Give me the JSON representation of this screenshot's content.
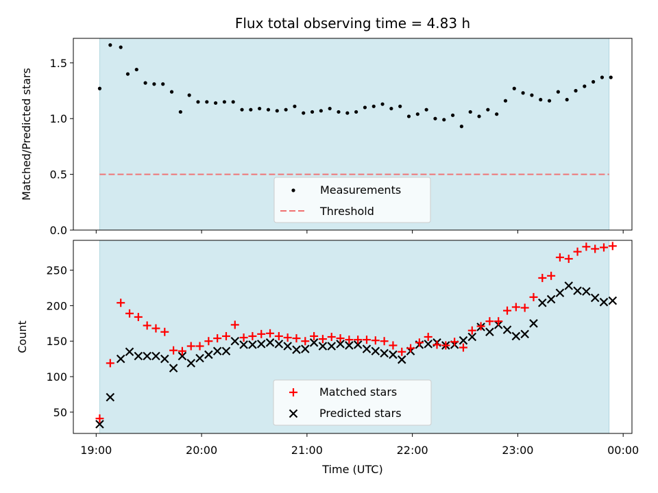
{
  "chart_data": [
    {
      "type": "scatter",
      "title": "Flux total observing time = 4.83 h",
      "xlabel": "",
      "ylabel": "Matched/Predicted stars",
      "ylim": [
        0,
        1.72
      ],
      "yticks": [
        0.0,
        0.5,
        1.0,
        1.5
      ],
      "ytick_labels": [
        "0.0",
        "0.5",
        "1.0",
        "1.5"
      ],
      "grid": false,
      "legend_position": "bottom-center",
      "shaded_interval": [
        "19:02",
        "23:52"
      ],
      "shade_color": "#d3eaf0",
      "series": [
        {
          "name": "Measurements",
          "marker": "dot",
          "color": "#000000",
          "x": [
            "19:02",
            "19:08",
            "19:14",
            "19:18",
            "19:23",
            "19:28",
            "19:33",
            "19:38",
            "19:43",
            "19:48",
            "19:53",
            "19:58",
            "20:03",
            "20:08",
            "20:13",
            "20:18",
            "20:23",
            "20:28",
            "20:33",
            "20:38",
            "20:43",
            "20:48",
            "20:53",
            "20:58",
            "21:03",
            "21:08",
            "21:13",
            "21:18",
            "21:23",
            "21:28",
            "21:33",
            "21:38",
            "21:43",
            "21:48",
            "21:53",
            "21:58",
            "22:03",
            "22:08",
            "22:13",
            "22:18",
            "22:23",
            "22:28",
            "22:33",
            "22:38",
            "22:43",
            "22:48",
            "22:53",
            "22:58",
            "23:03",
            "23:08",
            "23:13",
            "23:18",
            "23:23",
            "23:28",
            "23:33",
            "23:38",
            "23:43",
            "23:48",
            "23:53"
          ],
          "y": [
            1.27,
            1.66,
            1.64,
            1.4,
            1.44,
            1.32,
            1.31,
            1.31,
            1.24,
            1.06,
            1.21,
            1.15,
            1.15,
            1.14,
            1.15,
            1.15,
            1.08,
            1.08,
            1.09,
            1.08,
            1.07,
            1.08,
            1.11,
            1.05,
            1.06,
            1.07,
            1.09,
            1.06,
            1.05,
            1.06,
            1.1,
            1.11,
            1.13,
            1.09,
            1.11,
            1.02,
            1.04,
            1.08,
            1.0,
            0.99,
            1.03,
            0.93,
            1.06,
            1.02,
            1.08,
            1.04,
            1.16,
            1.27,
            1.23,
            1.21,
            1.17,
            1.16,
            1.24,
            1.17,
            1.25,
            1.29,
            1.33,
            1.37,
            1.37
          ]
        },
        {
          "name": "Threshold",
          "marker": "dashed-line",
          "color": "#f07070",
          "x": [
            "19:02",
            "23:52"
          ],
          "y": [
            0.5,
            0.5
          ]
        }
      ]
    },
    {
      "type": "scatter",
      "title": "",
      "xlabel": "Time (UTC)",
      "ylabel": "Count",
      "ylim": [
        20,
        292
      ],
      "yticks": [
        50,
        100,
        150,
        200,
        250
      ],
      "ytick_labels": [
        "50",
        "100",
        "150",
        "200",
        "250"
      ],
      "xlim": [
        "18:47",
        "24:05"
      ],
      "xticks": [
        "19:00",
        "20:00",
        "21:00",
        "22:00",
        "23:00",
        "24:00"
      ],
      "xtick_labels": [
        "19:00",
        "20:00",
        "21:00",
        "22:00",
        "23:00",
        "00:00"
      ],
      "grid": false,
      "legend_position": "bottom-center",
      "shaded_interval": [
        "19:02",
        "23:52"
      ],
      "shade_color": "#d3eaf0",
      "series": [
        {
          "name": "Matched stars",
          "marker": "plus",
          "color": "#ff0000",
          "x": [
            "19:02",
            "19:08",
            "19:14",
            "19:19",
            "19:24",
            "19:29",
            "19:34",
            "19:39",
            "19:44",
            "19:49",
            "19:54",
            "19:59",
            "20:04",
            "20:09",
            "20:14",
            "20:19",
            "20:24",
            "20:29",
            "20:34",
            "20:39",
            "20:44",
            "20:49",
            "20:54",
            "20:59",
            "21:04",
            "21:09",
            "21:14",
            "21:19",
            "21:24",
            "21:29",
            "21:34",
            "21:39",
            "21:44",
            "21:49",
            "21:54",
            "21:59",
            "22:04",
            "22:09",
            "22:14",
            "22:19",
            "22:24",
            "22:29",
            "22:34",
            "22:39",
            "22:44",
            "22:49",
            "22:54",
            "22:59",
            "23:04",
            "23:09",
            "23:14",
            "23:19",
            "23:24",
            "23:29",
            "23:34",
            "23:39",
            "23:44",
            "23:49",
            "23:54"
          ],
          "y": [
            41,
            119,
            204,
            189,
            184,
            172,
            168,
            163,
            137,
            136,
            143,
            143,
            150,
            154,
            157,
            173,
            155,
            157,
            160,
            161,
            157,
            155,
            154,
            150,
            157,
            153,
            156,
            154,
            152,
            152,
            152,
            151,
            150,
            144,
            135,
            140,
            148,
            156,
            145,
            144,
            149,
            141,
            165,
            171,
            178,
            178,
            193,
            198,
            197,
            212,
            239,
            242,
            268,
            266,
            276,
            283,
            280,
            282,
            284
          ]
        },
        {
          "name": "Predicted stars",
          "marker": "x",
          "color": "#000000",
          "x": [
            "19:02",
            "19:08",
            "19:14",
            "19:19",
            "19:24",
            "19:29",
            "19:34",
            "19:39",
            "19:44",
            "19:49",
            "19:54",
            "19:59",
            "20:04",
            "20:09",
            "20:14",
            "20:19",
            "20:24",
            "20:29",
            "20:34",
            "20:39",
            "20:44",
            "20:49",
            "20:54",
            "20:59",
            "21:04",
            "21:09",
            "21:14",
            "21:19",
            "21:24",
            "21:29",
            "21:34",
            "21:39",
            "21:44",
            "21:49",
            "21:54",
            "21:59",
            "22:04",
            "22:09",
            "22:14",
            "22:19",
            "22:24",
            "22:29",
            "22:34",
            "22:39",
            "22:44",
            "22:49",
            "22:54",
            "22:59",
            "23:04",
            "23:09",
            "23:14",
            "23:19",
            "23:24",
            "23:29",
            "23:34",
            "23:39",
            "23:44",
            "23:49",
            "23:54"
          ],
          "y": [
            33,
            71,
            125,
            135,
            129,
            129,
            129,
            125,
            112,
            129,
            119,
            126,
            131,
            136,
            136,
            150,
            145,
            145,
            146,
            148,
            146,
            143,
            138,
            139,
            148,
            143,
            143,
            146,
            144,
            145,
            139,
            136,
            133,
            131,
            124,
            136,
            145,
            146,
            148,
            144,
            145,
            151,
            156,
            170,
            163,
            173,
            166,
            157,
            160,
            175,
            204,
            209,
            218,
            228,
            221,
            220,
            211,
            205,
            207
          ]
        }
      ]
    }
  ]
}
